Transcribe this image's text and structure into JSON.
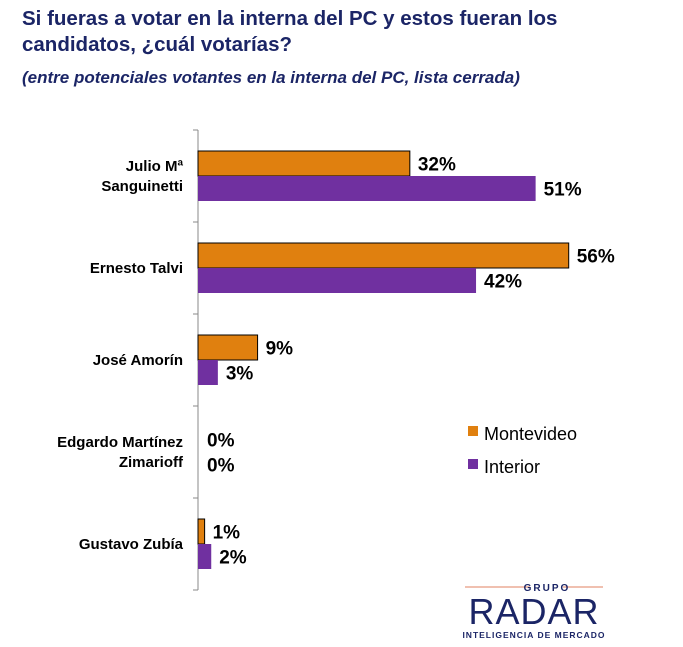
{
  "title": "Si fueras a votar en la interna del PC y estos fueran los candidatos, ¿cuál votarías?",
  "subtitle": "(entre potenciales votantes en la interna del PC, lista cerrada)",
  "logo": {
    "top": "GRUPO",
    "main": "RADAR",
    "bottom": "INTELIGENCIA DE MERCADO"
  },
  "chart_data": {
    "type": "bar",
    "orientation": "horizontal",
    "categories": [
      [
        "Julio Mª",
        "Sanguinetti"
      ],
      [
        "Ernesto Talvi"
      ],
      [
        "José Amorín"
      ],
      [
        "Edgardo Martínez",
        "Zimarioff"
      ],
      [
        "Gustavo Zubía"
      ]
    ],
    "series": [
      {
        "name": "Montevideo",
        "color": "#e0800f",
        "values": [
          32,
          56,
          9,
          0,
          1
        ]
      },
      {
        "name": "Interior",
        "color": "#7030a0",
        "values": [
          51,
          42,
          3,
          0,
          2
        ]
      }
    ],
    "unit": "%",
    "xlim": [
      0,
      60
    ],
    "legend": "right"
  }
}
